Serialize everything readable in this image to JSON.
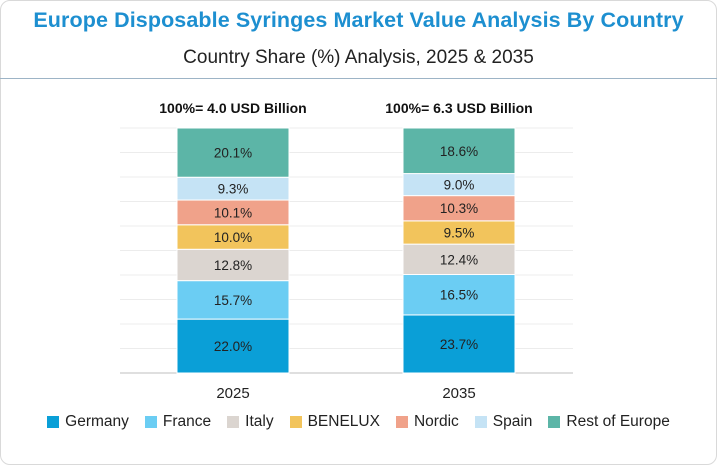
{
  "chart_data": {
    "type": "bar",
    "stacked": true,
    "normalized_percent": true,
    "title": "Europe Disposable Syringes Market Value Analysis By Country",
    "subtitle": "Country Share (%) Analysis, 2025 & 2035",
    "categories": [
      "2025",
      "2035"
    ],
    "totals": [
      "100%= 4.0 USD Billion",
      "100%= 6.3 USD Billion"
    ],
    "series": [
      {
        "name": "Germany",
        "color": "#0a9fd7",
        "values": [
          22.0,
          23.7
        ],
        "labels": [
          "22.0%",
          "23.7%"
        ]
      },
      {
        "name": "France",
        "color": "#6bcdf3",
        "values": [
          15.7,
          16.5
        ],
        "labels": [
          "15.7%",
          "16.5%"
        ]
      },
      {
        "name": "Italy",
        "color": "#dbd5d0",
        "values": [
          12.8,
          12.4
        ],
        "labels": [
          "12.8%",
          "12.4%"
        ]
      },
      {
        "name": "BENELUX",
        "color": "#f2c45c",
        "values": [
          10.0,
          9.5
        ],
        "labels": [
          "10.0%",
          "9.5%"
        ]
      },
      {
        "name": "Nordic",
        "color": "#f0a28a",
        "values": [
          10.1,
          10.3
        ],
        "labels": [
          "10.1%",
          "10.3%"
        ]
      },
      {
        "name": "Spain",
        "color": "#c5e3f5",
        "values": [
          9.3,
          9.0
        ],
        "labels": [
          "9.3%",
          "9.0%"
        ]
      },
      {
        "name": "Rest of Europe",
        "color": "#5cb5a7",
        "values": [
          20.1,
          18.6
        ],
        "labels": [
          "20.1%",
          "18.6%"
        ]
      }
    ],
    "grid": true,
    "legend": "bottom"
  }
}
